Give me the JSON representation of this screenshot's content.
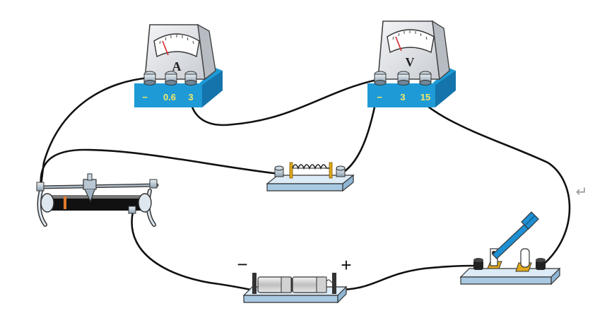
{
  "ammeter": {
    "letter": "A",
    "terminals": [
      "−",
      "0.6",
      "3"
    ]
  },
  "voltmeter": {
    "letter": "V",
    "terminals": [
      "−",
      "3",
      "15"
    ]
  },
  "battery": {
    "negative_sign": "−",
    "positive_sign": "+"
  },
  "return_symbol": "↵",
  "colors": {
    "meter_base": "#1e9ad6",
    "meter_body": "#e4e6ea",
    "terminal_label": "#f3e96a",
    "wire": "#111111",
    "board": "#cfe6f5"
  }
}
